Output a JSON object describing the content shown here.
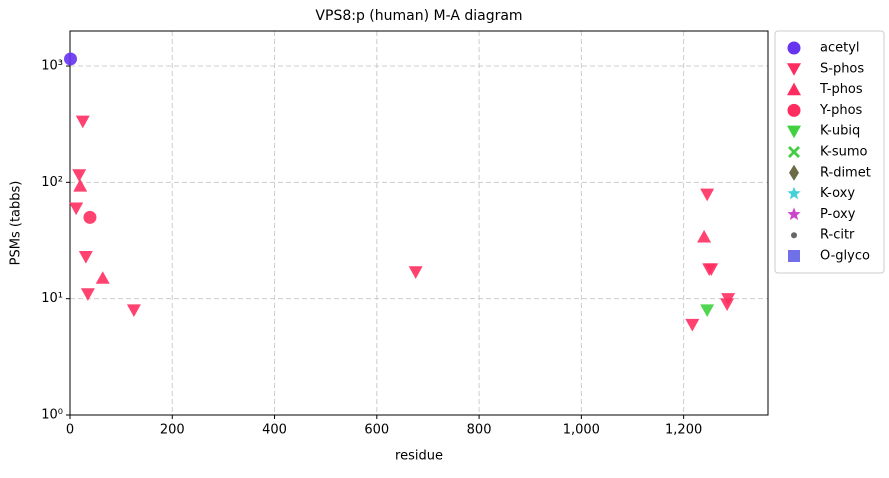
{
  "chart_data": {
    "type": "scatter",
    "title": "VPS8:p (human) M-A diagram",
    "x_label": "residue",
    "y_label": "PSMs (tabbs)",
    "xlim": [
      0,
      1365
    ],
    "ylim": [
      1,
      2000
    ],
    "y_log": true,
    "grid": true,
    "legend": "outside right",
    "xticks": [
      0,
      200,
      400,
      600,
      800,
      {
        "value": 1000,
        "label": "1,000"
      },
      {
        "value": 1200,
        "label": "1,200"
      }
    ],
    "yticks": [
      {
        "value": 1,
        "label": "10⁰"
      },
      {
        "value": 10,
        "label": "10¹"
      },
      {
        "value": 100,
        "label": "10²"
      },
      {
        "value": 1000,
        "label": "10³"
      }
    ],
    "series": [
      {
        "name": "acetyl",
        "color": "#6633ee",
        "marker": "circle",
        "x": [
          1
        ],
        "y": [
          1150
        ]
      },
      {
        "name": "S-phos",
        "color": "#ff2d5f",
        "marker": "triangle-down",
        "x": [
          25,
          18,
          12,
          31,
          35,
          125,
          676,
          1246,
          1250,
          1254,
          1217,
          1287,
          1285
        ],
        "y": [
          335,
          116,
          60,
          23,
          11,
          8,
          17,
          79,
          18,
          18,
          6,
          10,
          9
        ]
      },
      {
        "name": "T-phos",
        "color": "#ff2d5f",
        "marker": "triangle-up",
        "x": [
          20,
          64,
          1240
        ],
        "y": [
          93,
          15,
          34
        ]
      },
      {
        "name": "Y-phos",
        "color": "#ff2d5f",
        "marker": "circle",
        "x": [
          39
        ],
        "y": [
          50
        ]
      },
      {
        "name": "K-ubiq",
        "color": "#3fd13f",
        "marker": "triangle-down",
        "x": [
          1246
        ],
        "y": [
          8
        ]
      },
      {
        "name": "K-sumo",
        "color": "#44cc44",
        "marker": "x",
        "x": [],
        "y": []
      },
      {
        "name": "R-dimet",
        "color": "#6b6b45",
        "marker": "diamond",
        "x": [],
        "y": []
      },
      {
        "name": "K-oxy",
        "color": "#44d0d8",
        "marker": "star",
        "x": [],
        "y": []
      },
      {
        "name": "P-oxy",
        "color": "#cc44cc",
        "marker": "star",
        "x": [],
        "y": []
      },
      {
        "name": "R-citr",
        "color": "#666666",
        "marker": "dot",
        "x": [],
        "y": []
      },
      {
        "name": "O-glyco",
        "color": "#7070e8",
        "marker": "square",
        "x": [],
        "y": []
      }
    ]
  }
}
